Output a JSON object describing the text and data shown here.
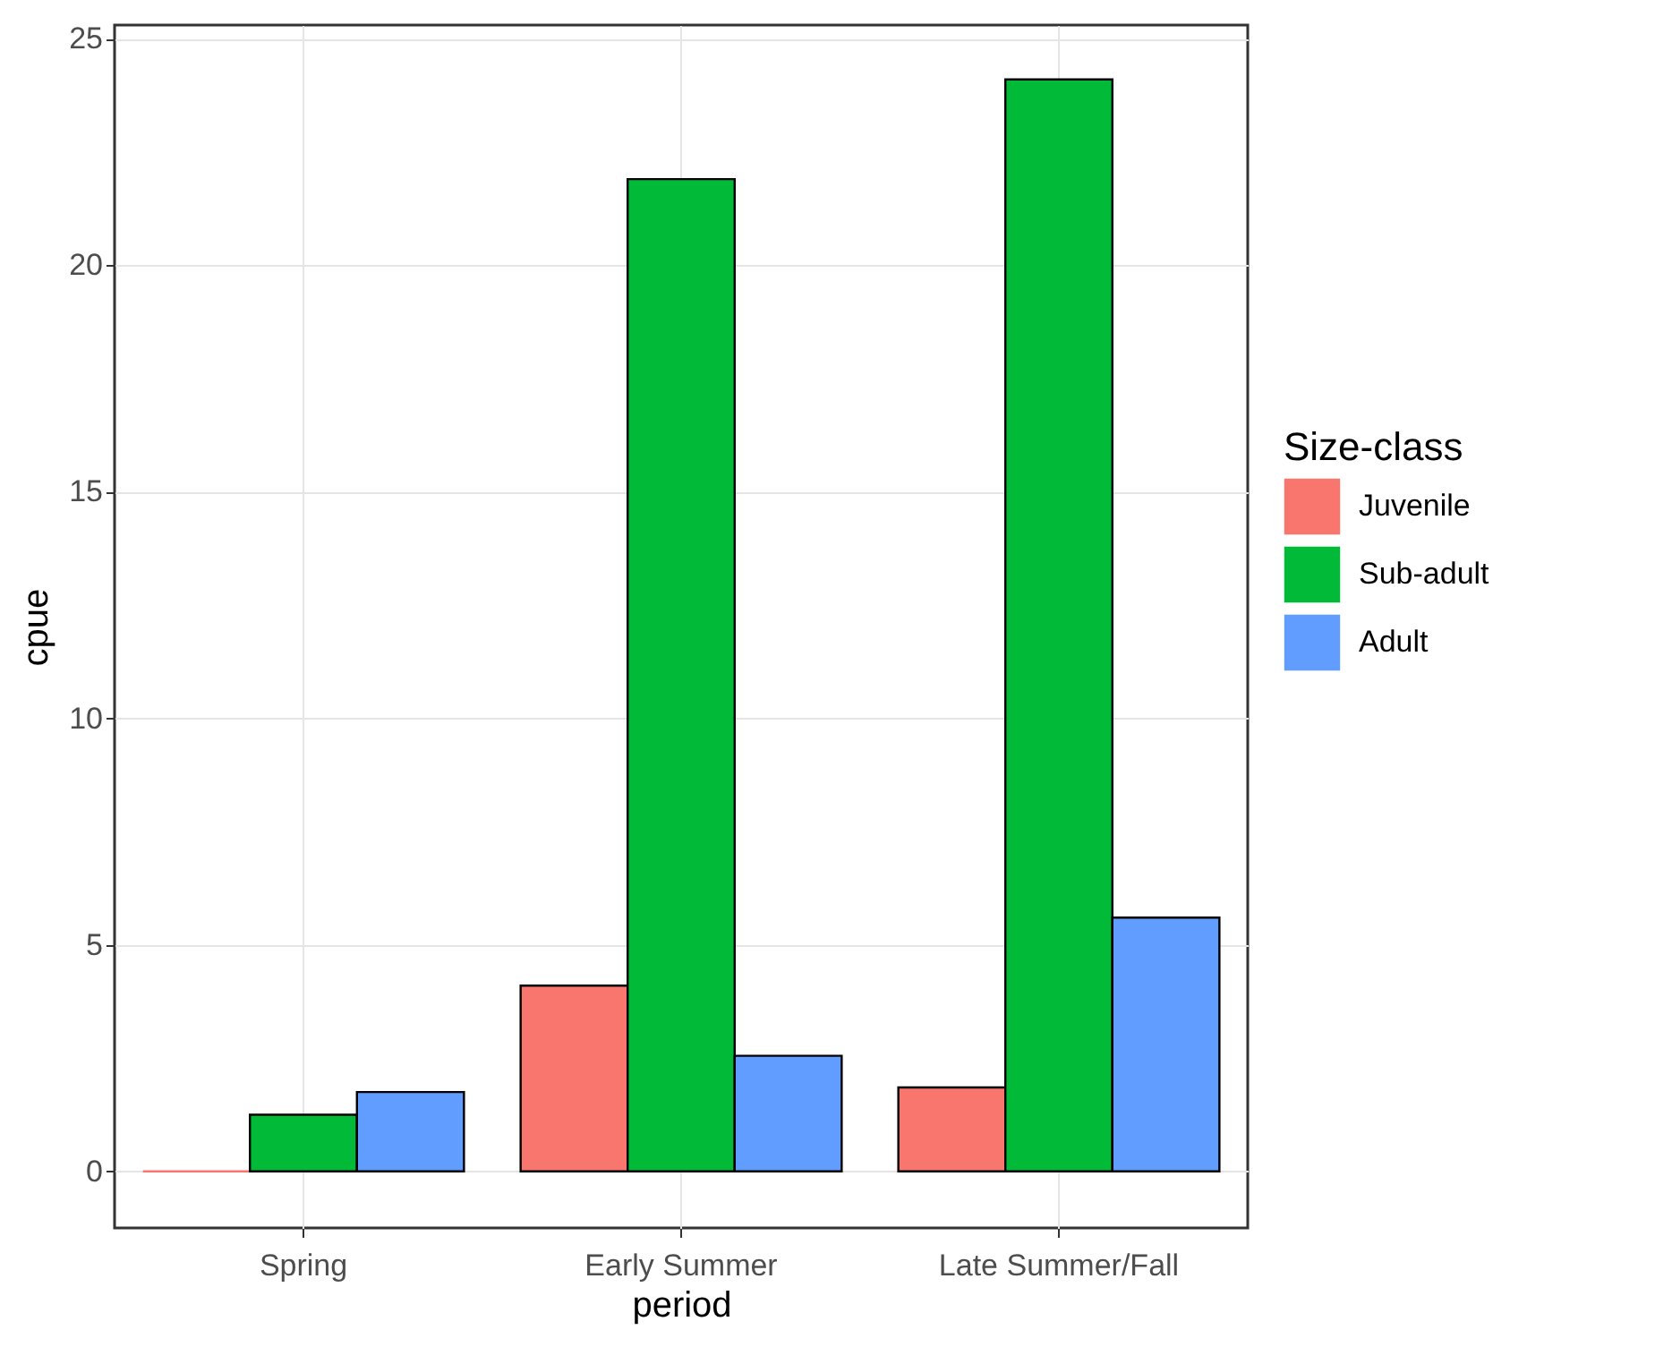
{
  "chart_data": {
    "type": "bar",
    "xlabel": "period",
    "ylabel": "cpue",
    "legend_title": "Size-class",
    "categories": [
      "Spring",
      "Early Summer",
      "Late Summer/Fall"
    ],
    "series": [
      {
        "name": "Juvenile",
        "color": "#f8766d",
        "values": [
          0,
          4.1,
          1.85
        ]
      },
      {
        "name": "Sub-adult",
        "color": "#00ba38",
        "values": [
          1.25,
          21.9,
          24.1
        ]
      },
      {
        "name": "Adult",
        "color": "#619cff",
        "values": [
          1.75,
          2.55,
          5.6
        ]
      }
    ],
    "ylim": [
      -1.25,
      25.3
    ],
    "yticks": [
      0,
      5,
      10,
      15,
      20,
      25
    ],
    "grid": true,
    "legend": "right"
  }
}
